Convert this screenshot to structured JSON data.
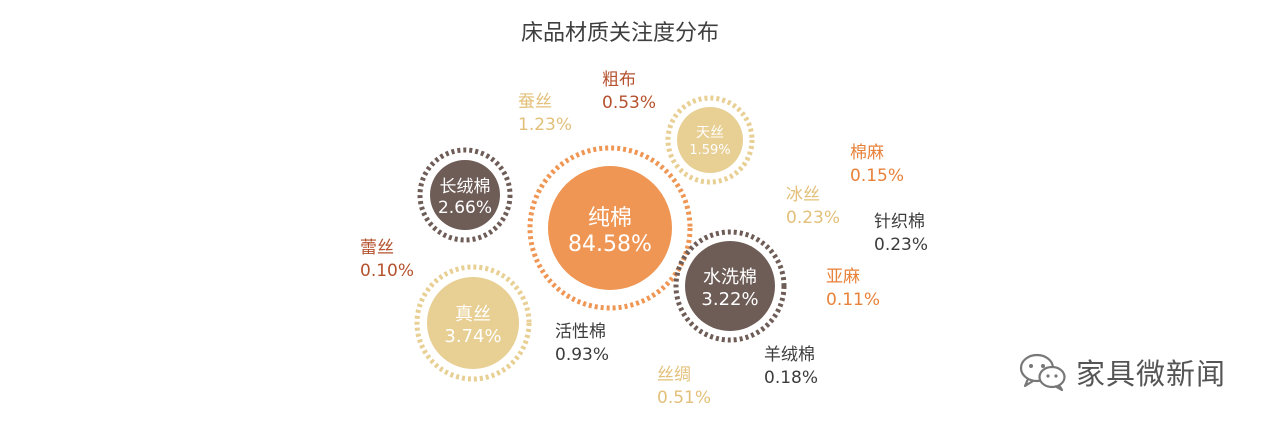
{
  "chart_data": {
    "type": "bubble",
    "title": "床品材质关注度分布",
    "categories": [
      "纯棉",
      "真丝",
      "水洗棉",
      "长绒棉",
      "天丝",
      "蚕丝",
      "活性棉",
      "粗布",
      "丝绸",
      "冰丝",
      "针织棉",
      "羊绒棉",
      "亚麻",
      "棉麻",
      "蕾丝"
    ],
    "values": [
      84.58,
      3.74,
      3.22,
      2.66,
      1.59,
      1.23,
      0.93,
      0.53,
      0.51,
      0.23,
      0.23,
      0.18,
      0.11,
      0.15,
      0.1
    ],
    "labels": [
      "84.58%",
      "3.74%",
      "3.22%",
      "2.66%",
      "1.59%",
      "1.23%",
      "0.93%",
      "0.53%",
      "0.51%",
      "0.23%",
      "0.23%",
      "0.18%",
      "0.11%",
      "0.15%",
      "0.10%"
    ],
    "unit": "%"
  },
  "colors": {
    "orange": "#ef9654",
    "dark_brown": "#6e5c57",
    "beige": "#e8cf93",
    "text_brown": "#b5522e",
    "text_orange": "#e8823a",
    "text_beige": "#e3c07a",
    "text_dark": "#3c3c3c",
    "title": "#3f3f3f"
  },
  "watermark": {
    "icon": "wechat-icon",
    "text": "家具微新闻"
  }
}
